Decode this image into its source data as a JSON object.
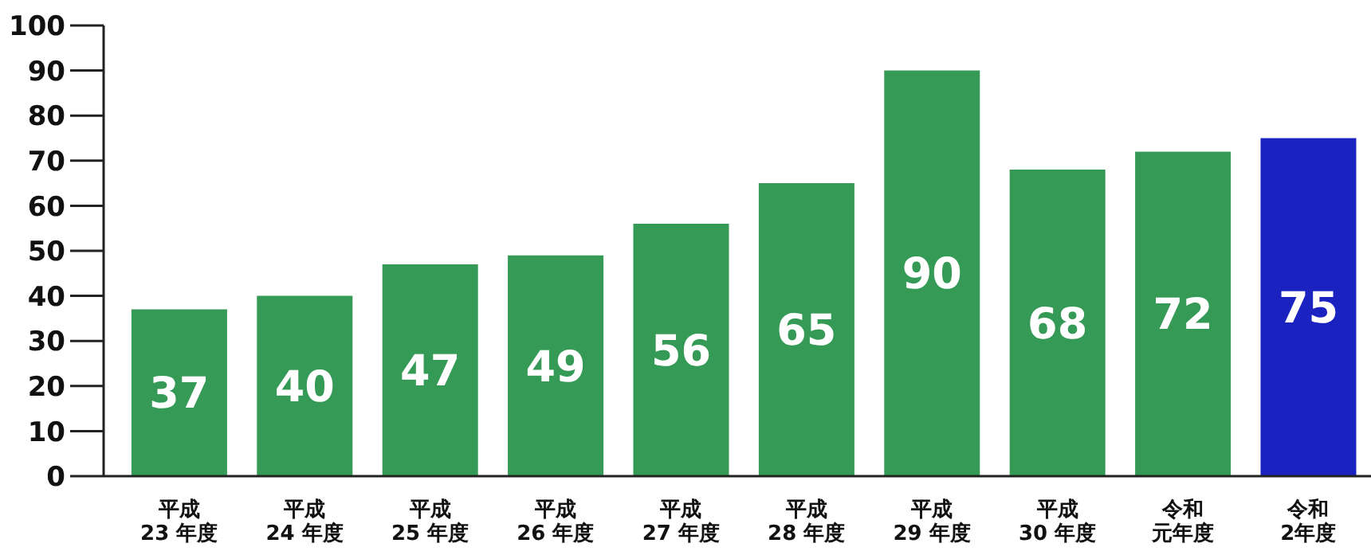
{
  "chart_data": {
    "type": "bar",
    "categories": [
      "平成23 年度",
      "平成24 年度",
      "平成25 年度",
      "平成26 年度",
      "平成27 年度",
      "平成28 年度",
      "平成29 年度",
      "平成30 年度",
      "令和元年度",
      "令和2年度"
    ],
    "values": [
      37,
      40,
      47,
      49,
      56,
      65,
      90,
      68,
      72,
      75
    ],
    "colors": [
      "#349a55",
      "#349a55",
      "#349a55",
      "#349a55",
      "#349a55",
      "#349a55",
      "#349a55",
      "#349a55",
      "#349a55",
      "#1a22c0"
    ],
    "ylim": [
      0,
      100
    ],
    "yticks": [
      0,
      10,
      20,
      30,
      40,
      50,
      60,
      70,
      80,
      90,
      100
    ],
    "data_labels": true,
    "grid": false,
    "legend": false
  }
}
